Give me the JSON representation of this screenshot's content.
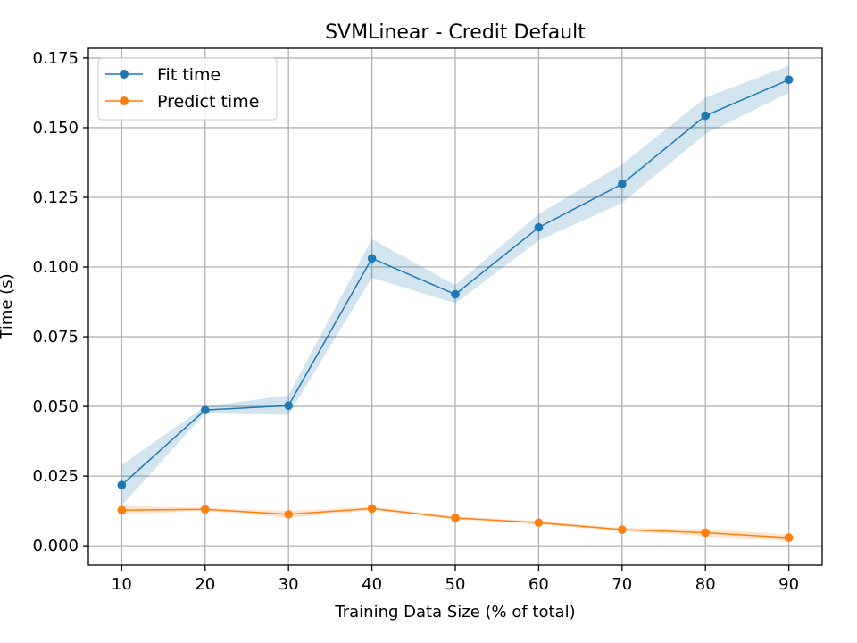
{
  "chart_data": {
    "type": "line",
    "title": "SVMLinear - Credit Default",
    "xlabel": "Training Data Size (% of total)",
    "ylabel": "Time (s)",
    "x": [
      10,
      20,
      30,
      40,
      50,
      60,
      70,
      80,
      90
    ],
    "xticks": [
      "10",
      "20",
      "30",
      "40",
      "50",
      "60",
      "70",
      "80",
      "90"
    ],
    "yticks": [
      "0.000",
      "0.025",
      "0.050",
      "0.075",
      "0.100",
      "0.125",
      "0.150",
      "0.175"
    ],
    "xlim": [
      6,
      94
    ],
    "ylim": [
      -0.007,
      0.1785
    ],
    "grid": true,
    "legend_position": "top-left",
    "series": [
      {
        "name": "Fit time",
        "color": "#1f77b4",
        "band_color": "#1f77b4",
        "values": [
          0.0218,
          0.0487,
          0.0503,
          0.1031,
          0.0902,
          0.1142,
          0.1298,
          0.1543,
          0.1672
        ],
        "band_lower": [
          0.0145,
          0.0475,
          0.047,
          0.0962,
          0.087,
          0.1095,
          0.123,
          0.1478,
          0.1625
        ],
        "band_upper": [
          0.029,
          0.05,
          0.054,
          0.11,
          0.0935,
          0.119,
          0.1368,
          0.1608,
          0.1722
        ]
      },
      {
        "name": "Predict time",
        "color": "#ff7f0e",
        "band_color": "#ff7f0e",
        "values": [
          0.0128,
          0.0131,
          0.0113,
          0.0134,
          0.01,
          0.0083,
          0.0058,
          0.0047,
          0.0029
        ],
        "band_lower": [
          0.0112,
          0.0126,
          0.01,
          0.0128,
          0.0094,
          0.0077,
          0.0052,
          0.0034,
          0.0017
        ],
        "band_upper": [
          0.0144,
          0.0136,
          0.0126,
          0.014,
          0.0106,
          0.0089,
          0.0064,
          0.006,
          0.0041
        ]
      }
    ]
  }
}
